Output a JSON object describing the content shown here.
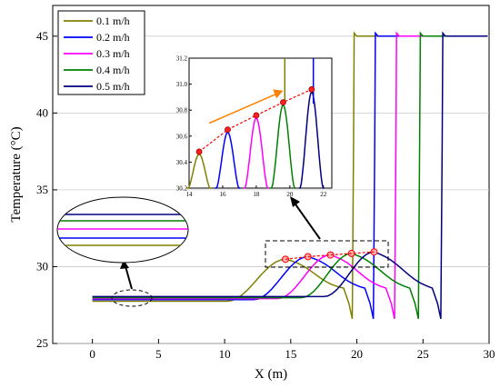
{
  "chart_data": {
    "type": "line",
    "title": "",
    "xlabel": "X (m)",
    "ylabel": "Temperature (°C)",
    "xlim": [
      -3,
      30
    ],
    "ylim": [
      25,
      47
    ],
    "xticks": [
      "0",
      "5",
      "10",
      "15",
      "20",
      "25",
      "30"
    ],
    "yticks": [
      "25",
      "30",
      "35",
      "40",
      "45"
    ],
    "grid": "horizontal",
    "legend_position": "top-left",
    "series": [
      {
        "name": "0.1 m/h",
        "color": "#808000",
        "front": 19.8,
        "peak_x": 14.6,
        "peak_y": 30.48,
        "base": 27.75,
        "min": 26.6,
        "rise_start": 10.2
      },
      {
        "name": "0.2 m/h",
        "color": "#0000ff",
        "front": 21.4,
        "peak_x": 16.3,
        "peak_y": 30.65,
        "base": 27.85,
        "min": 26.6,
        "rise_start": 12.2
      },
      {
        "name": "0.3 m/h",
        "color": "#ff00ff",
        "front": 23.0,
        "peak_x": 18.0,
        "peak_y": 30.76,
        "base": 27.92,
        "min": 26.6,
        "rise_start": 14.0
      },
      {
        "name": "0.4 m/h",
        "color": "#008000",
        "front": 24.8,
        "peak_x": 19.6,
        "peak_y": 30.86,
        "base": 27.98,
        "min": 26.6,
        "rise_start": 15.8
      },
      {
        "name": "0.5 m/h",
        "color": "#000080",
        "front": 26.5,
        "peak_x": 21.3,
        "peak_y": 30.96,
        "base": 28.05,
        "min": 26.6,
        "rise_start": 17.5
      }
    ],
    "top_temperature": 45,
    "inset": {
      "xlim": [
        14,
        22.5
      ],
      "ylim": [
        30.2,
        31.2
      ],
      "xticks": [
        "14",
        "16",
        "18",
        "20",
        "22"
      ],
      "yticks": [
        "30.2",
        "30.4",
        "30.6",
        "30.8",
        "31.0",
        "31.2"
      ],
      "peak_points": [
        {
          "x": 14.6,
          "y": 30.48
        },
        {
          "x": 16.3,
          "y": 30.65
        },
        {
          "x": 18.0,
          "y": 30.76
        },
        {
          "x": 19.6,
          "y": 30.86
        },
        {
          "x": 21.3,
          "y": 30.96
        }
      ]
    }
  }
}
